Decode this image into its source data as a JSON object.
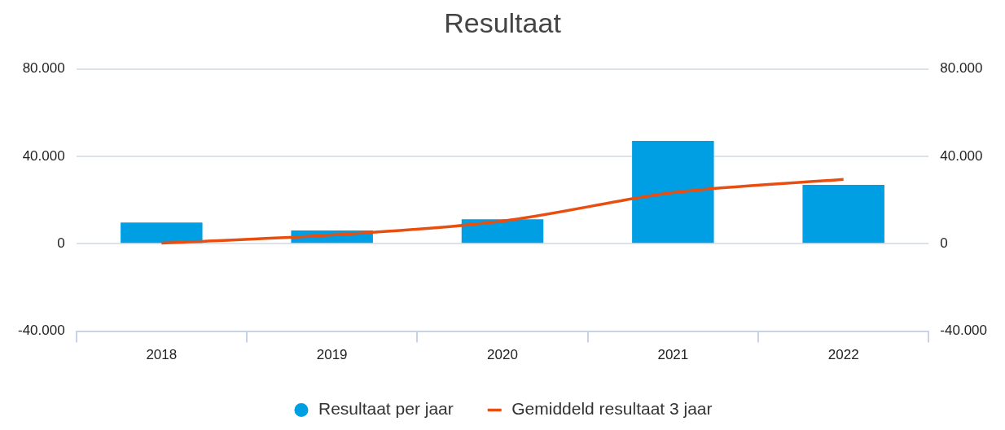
{
  "chart_data": {
    "type": "bar",
    "title": "Resultaat",
    "categories": [
      "2018",
      "2019",
      "2020",
      "2021",
      "2022"
    ],
    "series": [
      {
        "name": "Resultaat per jaar",
        "color": "#009fe3",
        "values": [
          9700,
          6100,
          11200,
          47100,
          27000
        ]
      },
      {
        "name": "Gemiddeld resultaat 3 jaar",
        "type": "line",
        "color": "#e84e0f",
        "values": [
          300,
          4000,
          10400,
          23400,
          29500
        ]
      }
    ],
    "ylim": [
      -40000,
      80000
    ],
    "yticks": [
      {
        "value": -40000,
        "label": "-40.000"
      },
      {
        "value": 0,
        "label": "0"
      },
      {
        "value": 40000,
        "label": "40.000"
      },
      {
        "value": 80000,
        "label": "80.000"
      }
    ],
    "y2lim": [
      -40000,
      80000
    ],
    "y2ticks": [
      {
        "value": -40000,
        "label": "-40.000"
      },
      {
        "value": 0,
        "label": "0"
      },
      {
        "value": 40000,
        "label": "40.000"
      },
      {
        "value": 80000,
        "label": "80.000"
      }
    ],
    "grid": "y",
    "legend": "bottom",
    "marker": "none",
    "line_style": "solid"
  }
}
